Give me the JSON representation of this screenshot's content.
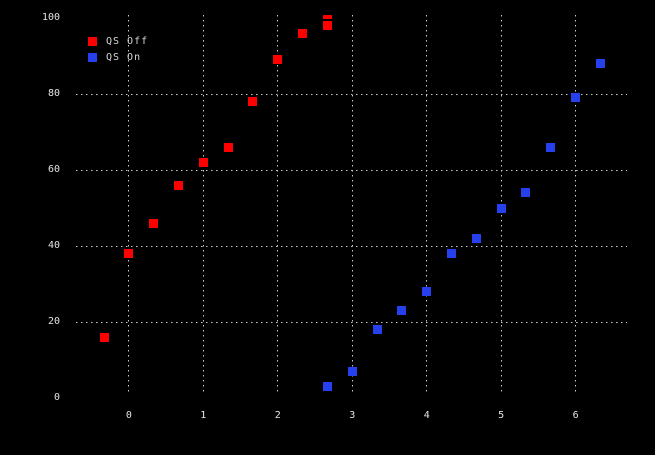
{
  "chart_data": {
    "type": "scatter",
    "title": "",
    "xlabel": "",
    "ylabel": "",
    "marker_shape": "square",
    "background_color": "#000000",
    "grid_color": "#c9c9c9",
    "text_color": "#e4e4e4",
    "grid_style": "dotted",
    "legend_position": "top-left-inside",
    "xlim": [
      -0.71,
      6.69
    ],
    "ylim": [
      0,
      100.8
    ],
    "x_ticks": [
      "0",
      "1",
      "2",
      "3",
      "4",
      "5",
      "6"
    ],
    "x_tick_values": [
      0,
      1,
      2,
      3,
      4,
      5,
      6
    ],
    "y_ticks": [
      "0",
      "20",
      "40",
      "60",
      "80",
      "100"
    ],
    "y_tick_values": [
      0,
      20,
      40,
      60,
      80,
      100
    ],
    "grid_x_lines": [
      0,
      1,
      2,
      3,
      4,
      5,
      6
    ],
    "grid_y_lines": [
      20,
      40,
      60,
      80
    ],
    "series": [
      {
        "name": "QS Off",
        "color": "#ff0000",
        "points": [
          {
            "x": -0.333,
            "y": 16
          },
          {
            "x": 0.0,
            "y": 38
          },
          {
            "x": 0.333,
            "y": 46
          },
          {
            "x": 0.667,
            "y": 56
          },
          {
            "x": 1.0,
            "y": 62
          },
          {
            "x": 1.333,
            "y": 66
          },
          {
            "x": 1.667,
            "y": 78
          },
          {
            "x": 2.0,
            "y": 89
          },
          {
            "x": 2.333,
            "y": 96
          },
          {
            "x": 2.667,
            "y": 98
          },
          {
            "x": 2.667,
            "y": 101,
            "clipped": true
          }
        ]
      },
      {
        "name": "QS On",
        "color": "#2540ec",
        "points": [
          {
            "x": 2.667,
            "y": 3
          },
          {
            "x": 3.0,
            "y": 7
          },
          {
            "x": 3.333,
            "y": 18
          },
          {
            "x": 3.667,
            "y": 23
          },
          {
            "x": 4.0,
            "y": 28
          },
          {
            "x": 4.333,
            "y": 38
          },
          {
            "x": 4.667,
            "y": 42
          },
          {
            "x": 5.0,
            "y": 50
          },
          {
            "x": 5.333,
            "y": 54
          },
          {
            "x": 5.667,
            "y": 66
          },
          {
            "x": 6.0,
            "y": 79
          },
          {
            "x": 6.333,
            "y": 88
          }
        ]
      }
    ]
  }
}
